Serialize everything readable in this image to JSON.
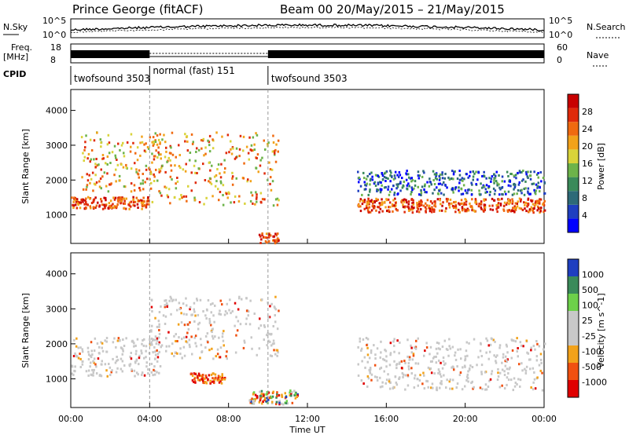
{
  "header": {
    "station": "Prince George (fitACF)",
    "beam_date": "Beam 00  20/May/2015 – 21/May/2015"
  },
  "strips": {
    "nsky_label": "N.Sky",
    "nsearch_label": "N.Search",
    "nsky_ticks": [
      "10^5",
      "10^0"
    ],
    "nsearch_ticks": [
      "10^5",
      "10^0"
    ],
    "freq_label_1": "Freq.",
    "freq_label_2": "[MHz]",
    "freq_ticks": [
      "18",
      "8"
    ],
    "nave_label": "Nave",
    "nave_ticks": [
      "60",
      "0"
    ],
    "cpid_label": "CPID",
    "cpid_segments": [
      {
        "name": "twofsound 3503",
        "from": "00:00",
        "to": "04:00"
      },
      {
        "name": "normal (fast) 151",
        "from": "04:00",
        "to": "10:00"
      },
      {
        "name": "twofsound 3503",
        "from": "10:00",
        "to": "24:00"
      }
    ]
  },
  "axes": {
    "ylabel": "Slant Range [km]",
    "xlabel": "Time UT",
    "xticks": [
      "00:00",
      "04:00",
      "08:00",
      "12:00",
      "16:00",
      "20:00",
      "00:00"
    ],
    "yticks": [
      "1000",
      "2000",
      "3000",
      "4000"
    ]
  },
  "colorbars": {
    "power_label": "Power [dB]",
    "power_ticks": [
      "28",
      "24",
      "20",
      "16",
      "12",
      "8",
      "4"
    ],
    "velocity_label": "Velocity [m s^-1]",
    "velocity_ticks": [
      "1000",
      "500",
      "100",
      "25",
      "-25",
      "-100",
      "-500",
      "-1000"
    ],
    "power_colors": [
      "#0000ff",
      "#1f3fc0",
      "#2e6a78",
      "#3a8a5a",
      "#6db34a",
      "#d9d33a",
      "#f2a21a",
      "#f06a10",
      "#e02a0a",
      "#c80000"
    ],
    "velocity_colors": [
      "#e00000",
      "#f05010",
      "#f2a21a",
      "#c8c8c8",
      "#c8c8c8",
      "#6dd04a",
      "#3a8a5a",
      "#1f3fc0"
    ]
  },
  "chart_data": [
    {
      "type": "heatmap",
      "title": "Power",
      "xlabel": "Time UT",
      "ylabel": "Slant Range [km]",
      "xlim": [
        "00:00",
        "24:00"
      ],
      "ylim": [
        180,
        4600
      ],
      "colorbar": {
        "label": "Power [dB]",
        "ticks": [
          28,
          24,
          20,
          16,
          12,
          8,
          4
        ]
      },
      "bands": [
        {
          "t0": 0.0,
          "t1": 4.0,
          "r0": 1200,
          "r1": 1550,
          "level": "high"
        },
        {
          "t0": 0.5,
          "t1": 4.5,
          "r0": 1700,
          "r1": 3400,
          "level": "medium"
        },
        {
          "t0": 4.0,
          "t1": 10.5,
          "r0": 1300,
          "r1": 3400,
          "level": "medium"
        },
        {
          "t0": 9.5,
          "t1": 10.5,
          "r0": 200,
          "r1": 500,
          "level": "high"
        },
        {
          "t0": 14.5,
          "t1": 24.0,
          "r0": 1100,
          "r1": 1500,
          "level": "high"
        },
        {
          "t0": 14.5,
          "t1": 24.0,
          "r0": 1600,
          "r1": 2300,
          "level": "low"
        }
      ]
    },
    {
      "type": "heatmap",
      "title": "Velocity",
      "xlabel": "Time UT",
      "ylabel": "Slant Range [km]",
      "xlim": [
        "00:00",
        "24:00"
      ],
      "ylim": [
        180,
        4600
      ],
      "colorbar": {
        "label": "Velocity [m s^-1]",
        "ticks": [
          1000,
          500,
          100,
          25,
          -25,
          -100,
          -500,
          -1000
        ]
      },
      "bands": [
        {
          "t0": 0.0,
          "t1": 4.5,
          "r0": 1100,
          "r1": 2200,
          "level": "zero"
        },
        {
          "t0": 4.0,
          "t1": 10.5,
          "r0": 1600,
          "r1": 3400,
          "level": "zero"
        },
        {
          "t0": 6.0,
          "t1": 7.8,
          "r0": 900,
          "r1": 1200,
          "level": "neg"
        },
        {
          "t0": 9.0,
          "t1": 11.5,
          "r0": 300,
          "r1": 700,
          "level": "mixed"
        },
        {
          "t0": 14.5,
          "t1": 24.0,
          "r0": 700,
          "r1": 2200,
          "level": "zero"
        }
      ]
    }
  ]
}
